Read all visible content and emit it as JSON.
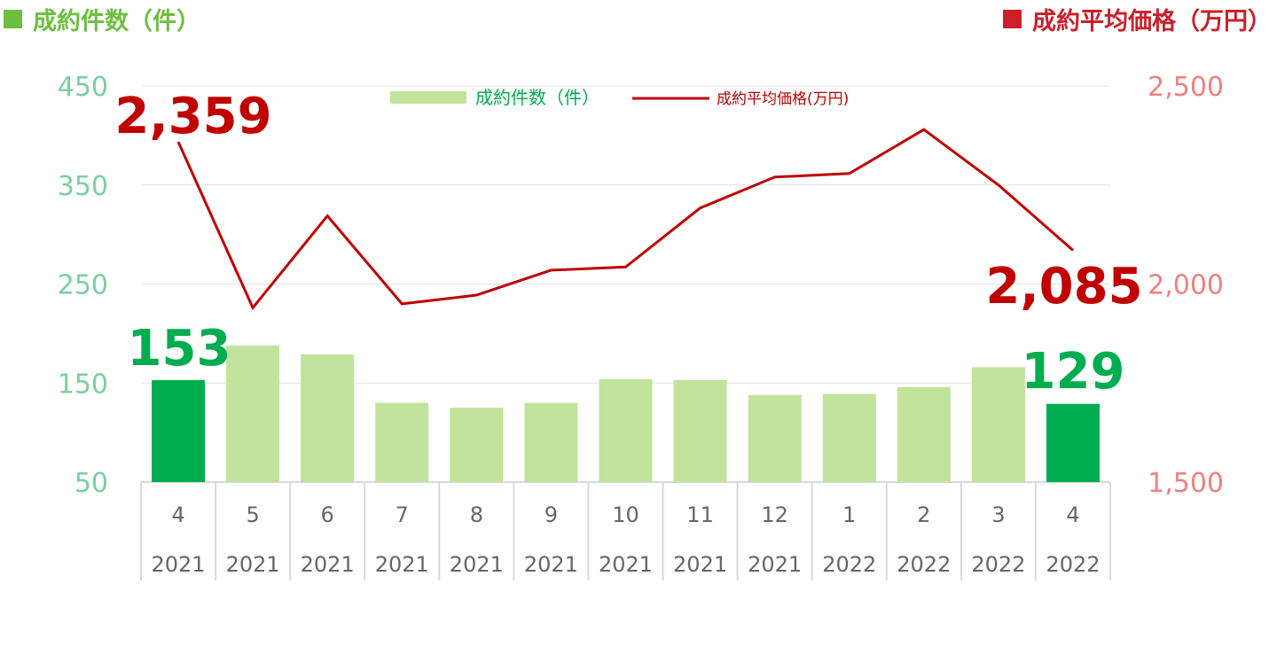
{
  "header": {
    "left_title": "成約件数（件）",
    "right_title": "成約平均価格（万円）"
  },
  "colors": {
    "bar": "#c1e39b",
    "bar_highlight": "#00ad4e",
    "line": "#c00000",
    "left_axis_text": "#7ccf9e",
    "right_axis_text": "#f08080",
    "label_count": "#00ad4e",
    "label_price": "#c00000",
    "grid": "#e2e2e2",
    "category_text": "#666666"
  },
  "chart_data": {
    "type": "bar",
    "categories": [
      {
        "month": "4",
        "year": "2021"
      },
      {
        "month": "5",
        "year": "2021"
      },
      {
        "month": "6",
        "year": "2021"
      },
      {
        "month": "7",
        "year": "2021"
      },
      {
        "month": "8",
        "year": "2021"
      },
      {
        "month": "9",
        "year": "2021"
      },
      {
        "month": "10",
        "year": "2021"
      },
      {
        "month": "11",
        "year": "2021"
      },
      {
        "month": "12",
        "year": "2021"
      },
      {
        "month": "1",
        "year": "2022"
      },
      {
        "month": "2",
        "year": "2022"
      },
      {
        "month": "3",
        "year": "2022"
      },
      {
        "month": "4",
        "year": "2022"
      }
    ],
    "series": [
      {
        "name": "成約件数（件）",
        "type": "bar",
        "axis": "left",
        "values": [
          153,
          188,
          179,
          130,
          125,
          130,
          154,
          153,
          138,
          139,
          146,
          166,
          129
        ],
        "highlight": [
          true,
          false,
          false,
          false,
          false,
          false,
          false,
          false,
          false,
          false,
          false,
          false,
          true
        ]
      },
      {
        "name": "成約平均価格(万円)",
        "type": "line",
        "axis": "right",
        "values": [
          2359,
          1940,
          2172,
          1950,
          1972,
          2035,
          2043,
          2192,
          2270,
          2279,
          2390,
          2250,
          2085
        ]
      }
    ],
    "left_axis": {
      "min": 50,
      "max": 450,
      "ticks": [
        "450",
        "350",
        "250",
        "150",
        "50"
      ]
    },
    "right_axis": {
      "min": 1500,
      "max": 2500,
      "ticks": [
        "2,500",
        "2,000",
        "1,500"
      ]
    },
    "annotations": {
      "count_first": "153",
      "count_last": "129",
      "price_first": "2,359",
      "price_last": "2,085"
    },
    "legend": {
      "position": "top-center"
    },
    "grid": true
  }
}
